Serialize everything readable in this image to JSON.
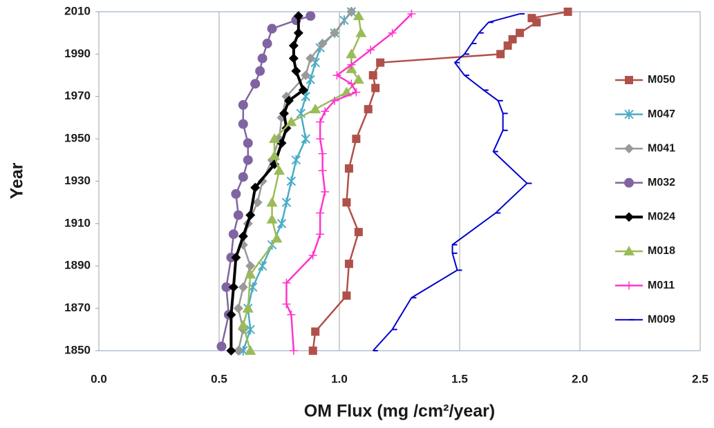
{
  "chart_data": {
    "type": "line",
    "x_label": "OM Flux (mg /cm²/year)",
    "y_label": "Year",
    "xlim": [
      0,
      2.5
    ],
    "xticks": [
      {
        "value": 0,
        "label": "0.0"
      },
      0.5,
      {
        "value": 1,
        "label": "1.0"
      },
      1.5,
      {
        "value": 2,
        "label": "2.0"
      },
      2.5
    ],
    "ylim": [
      1850,
      2010
    ],
    "yticks": [
      1850,
      1870,
      1890,
      1910,
      1930,
      1950,
      1970,
      1990,
      2010
    ],
    "grid": "x",
    "legend": "right",
    "series": [
      {
        "name": "M050",
        "color": "#b0504a",
        "marker": "square",
        "line_width": 2.5,
        "values": [
          1.95,
          1.8,
          1.82,
          1.75,
          1.72,
          1.7,
          1.67,
          1.17,
          1.14,
          1.15,
          1.12,
          1.07,
          1.04,
          1.03,
          1.08,
          1.04,
          1.03,
          0.9,
          0.89
        ],
        "years": [
          2010,
          2007,
          2005,
          2000,
          1997,
          1994,
          1990,
          1986,
          1980,
          1974,
          1964,
          1950,
          1936,
          1920,
          1906,
          1891,
          1876,
          1859,
          1850
        ]
      },
      {
        "name": "M047",
        "color": "#4bacc6",
        "marker": "star",
        "line_width": 2.5,
        "values": [
          1.05,
          1.02,
          0.98,
          0.92,
          0.9,
          0.88,
          0.86,
          0.84,
          0.86,
          0.82,
          0.8,
          0.78,
          0.76,
          0.72,
          0.68,
          0.64,
          0.62,
          0.63,
          0.6
        ],
        "years": [
          2010,
          2006,
          2000,
          1993,
          1986,
          1978,
          1970,
          1962,
          1950,
          1940,
          1930,
          1920,
          1910,
          1900,
          1890,
          1880,
          1870,
          1860,
          1850
        ]
      },
      {
        "name": "M041",
        "color": "#999999",
        "marker": "diamond",
        "line_width": 2.5,
        "values": [
          1.05,
          0.98,
          0.93,
          0.88,
          0.86,
          0.78,
          0.76,
          0.75,
          0.72,
          0.68,
          0.66,
          0.62,
          0.6,
          0.63,
          0.6,
          0.58,
          0.6,
          0.58
        ],
        "years": [
          2010,
          2000,
          1995,
          1988,
          1980,
          1970,
          1960,
          1950,
          1940,
          1930,
          1920,
          1910,
          1900,
          1890,
          1880,
          1870,
          1860,
          1850
        ]
      },
      {
        "name": "M032",
        "color": "#8064a2",
        "marker": "circle",
        "line_width": 2.5,
        "values": [
          0.88,
          0.82,
          0.72,
          0.7,
          0.68,
          0.67,
          0.65,
          0.6,
          0.6,
          0.62,
          0.62,
          0.6,
          0.57,
          0.58,
          0.56,
          0.55,
          0.53,
          0.54,
          0.51
        ],
        "years": [
          2008,
          2006,
          2002,
          1995,
          1988,
          1982,
          1976,
          1966,
          1957,
          1948,
          1940,
          1932,
          1924,
          1914,
          1905,
          1894,
          1880,
          1867,
          1852
        ]
      },
      {
        "name": "M024",
        "color": "#000000",
        "marker": "diamond",
        "line_width": 4,
        "values": [
          0.83,
          0.83,
          0.81,
          0.81,
          0.82,
          0.85,
          0.79,
          0.77,
          0.78,
          0.76,
          0.73,
          0.65,
          0.63,
          0.6,
          0.57,
          0.56,
          0.55,
          0.55
        ],
        "years": [
          2008,
          2000,
          1994,
          1988,
          1982,
          1973,
          1968,
          1962,
          1955,
          1948,
          1938,
          1927,
          1914,
          1904,
          1894,
          1880,
          1867,
          1850
        ]
      },
      {
        "name": "M018",
        "color": "#9bbb59",
        "marker": "triangle",
        "line_width": 2.5,
        "values": [
          1.08,
          1.09,
          1.05,
          1.05,
          1.08,
          1.03,
          0.9,
          0.8,
          0.73,
          0.73,
          0.75,
          0.72,
          0.72,
          0.74,
          0.63,
          0.62,
          0.6,
          0.63
        ],
        "years": [
          2008,
          2000,
          1990,
          1983,
          1978,
          1972,
          1964,
          1958,
          1950,
          1942,
          1935,
          1920,
          1912,
          1903,
          1886,
          1870,
          1862,
          1850
        ]
      },
      {
        "name": "M011",
        "color": "#ff33cc",
        "marker": "plus",
        "line_width": 2.5,
        "values": [
          1.3,
          1.22,
          1.13,
          1.05,
          0.99,
          1.05,
          1.07,
          0.98,
          0.94,
          0.92,
          0.92,
          0.93,
          0.93,
          0.94,
          0.92,
          0.92,
          0.89,
          0.78,
          0.78,
          0.8,
          0.81
        ],
        "years": [
          2009,
          2000,
          1992,
          1985,
          1980,
          1976,
          1972,
          1968,
          1963,
          1958,
          1950,
          1943,
          1935,
          1925,
          1915,
          1905,
          1895,
          1882,
          1872,
          1867,
          1850
        ]
      },
      {
        "name": "M009",
        "color": "#0000cc",
        "marker": "dash",
        "line_width": 2,
        "values": [
          1.75,
          1.62,
          1.58,
          1.55,
          1.52,
          1.48,
          1.52,
          1.6,
          1.66,
          1.68,
          1.68,
          1.64,
          1.78,
          1.65,
          1.47,
          1.47,
          1.49,
          1.3,
          1.22,
          1.14
        ],
        "years": [
          2009,
          2005,
          2000,
          1995,
          1990,
          1986,
          1980,
          1973,
          1968,
          1962,
          1954,
          1944,
          1929,
          1915,
          1900,
          1896,
          1888,
          1875,
          1860,
          1850
        ]
      }
    ]
  }
}
